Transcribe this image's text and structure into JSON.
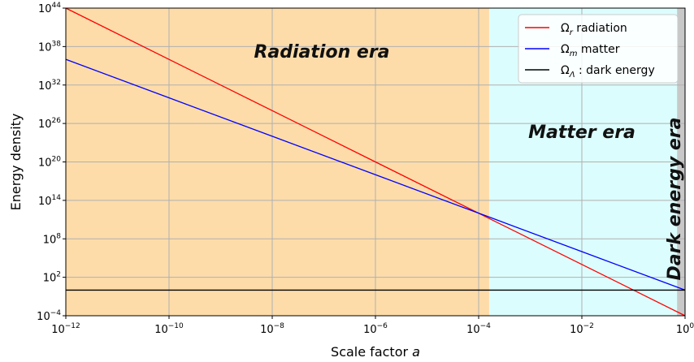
{
  "chart_data": {
    "type": "line",
    "x_scale": "log",
    "y_scale": "log",
    "xlim": [
      1e-12,
      1
    ],
    "ylim": [
      0.0001,
      1e+44
    ],
    "grid": true,
    "legend_position": "top-right",
    "xlabel": "Scale factor",
    "xlabel_italic": "a",
    "ylabel": "Energy density",
    "x_ticks": [
      {
        "value": 1e-12,
        "base": "10",
        "exp": "−12"
      },
      {
        "value": 1e-10,
        "base": "10",
        "exp": "−10"
      },
      {
        "value": 1e-08,
        "base": "10",
        "exp": "−8"
      },
      {
        "value": 1e-06,
        "base": "10",
        "exp": "−6"
      },
      {
        "value": 0.0001,
        "base": "10",
        "exp": "−4"
      },
      {
        "value": 0.01,
        "base": "10",
        "exp": "−2"
      },
      {
        "value": 1,
        "base": "10",
        "exp": "0"
      }
    ],
    "y_ticks": [
      {
        "value": 0.0001,
        "base": "10",
        "exp": "−4"
      },
      {
        "value": 100.0,
        "base": "10",
        "exp": "2"
      },
      {
        "value": 100000000.0,
        "base": "10",
        "exp": "8"
      },
      {
        "value": 100000000000000.0,
        "base": "10",
        "exp": "14"
      },
      {
        "value": 1e+20,
        "base": "10",
        "exp": "20"
      },
      {
        "value": 1e+26,
        "base": "10",
        "exp": "26"
      },
      {
        "value": 1e+32,
        "base": "10",
        "exp": "32"
      },
      {
        "value": 1e+38,
        "base": "10",
        "exp": "38"
      },
      {
        "value": 1e+44,
        "base": "10",
        "exp": "44"
      }
    ],
    "regions": [
      {
        "label": "Radiation era",
        "x_start": 1e-12,
        "x_end": 0.00016,
        "color": "#fddcaa"
      },
      {
        "label": "Matter era",
        "x_start": 0.00016,
        "x_end": 0.7,
        "color": "#dcfdfd"
      },
      {
        "label": "Dark energy era",
        "x_start": 0.7,
        "x_end": 1,
        "color": "#c8c8c8"
      }
    ],
    "series": [
      {
        "name_symbol": "Ω",
        "name_sub": "r",
        "name_text": "radiation",
        "color": "#ff0000",
        "x": [
          1e-12,
          1e-10,
          1e-08,
          1e-06,
          0.0001,
          0.00016,
          0.01,
          1
        ],
        "y": [
          1e+44,
          1e+36,
          1e+28,
          1e+20,
          1000000000000.0,
          150000000000.0,
          10000.0,
          0.0001
        ]
      },
      {
        "name_symbol": "Ω",
        "name_sub": "m",
        "name_text": "matter",
        "color": "#0000ff",
        "x": [
          1e-12,
          1e-10,
          1e-08,
          1e-06,
          0.0001,
          0.00016,
          0.01,
          1
        ],
        "y": [
          1e+36,
          1e+30,
          1e+24,
          1e+18,
          1000000000000.0,
          250000000000.0,
          1000000.0,
          1.0
        ]
      },
      {
        "name_symbol": "Ω",
        "name_sub": "Λ",
        "name_text": ": dark energy",
        "color": "#000000",
        "x": [
          1e-12,
          1
        ],
        "y": [
          1.0,
          1.0
        ]
      }
    ]
  }
}
